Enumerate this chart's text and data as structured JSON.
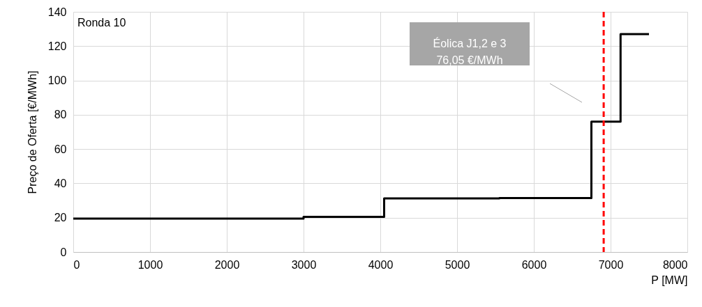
{
  "chart_data": {
    "type": "step",
    "xlabel": "P [MW]",
    "ylabel": "Preço de Oferta [€/MWh]",
    "x": [
      0,
      3000,
      4050,
      5550,
      6750,
      7130,
      7500
    ],
    "series": [
      {
        "color": "#000000",
        "values": [
          19.5,
          20.5,
          31.2,
          31.5,
          76,
          127,
          127
        ]
      }
    ],
    "xlim": [
      0,
      8000
    ],
    "xticks": [
      0,
      1000,
      2000,
      3000,
      4000,
      5000,
      6000,
      7000,
      8000
    ],
    "ylim": [
      0,
      140
    ],
    "yticks": [
      0,
      20,
      40,
      60,
      80,
      100,
      120,
      140
    ],
    "grid": true,
    "legend": false,
    "marker": "none",
    "line_style": "solid",
    "ref_lines": [
      {
        "axis": "x",
        "value": 6910,
        "color": "#ff0000",
        "line_style": "dashed"
      }
    ],
    "annotations": [
      "Ronda 10",
      "Éolica J1,2 e 3\n76,05 €/MWh"
    ]
  }
}
